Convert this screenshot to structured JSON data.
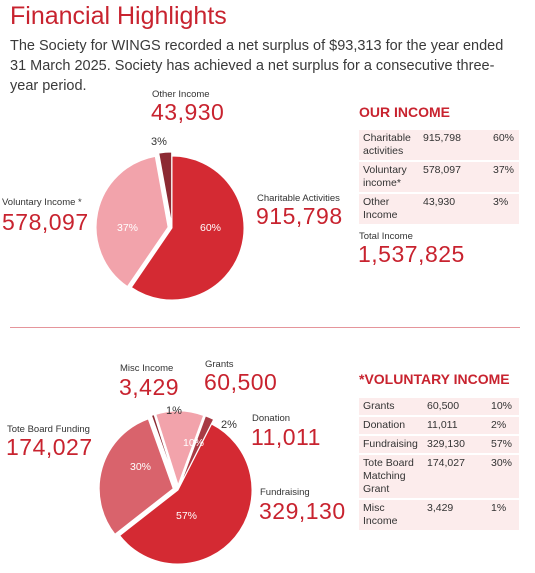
{
  "header": {
    "title": "Financial Highlights",
    "intro": "The Society for WINGS recorded a net surplus of $93,313 for the year ended 31 March 2025. Society has achieved a net surplus for a consecutive three-year period."
  },
  "income": {
    "heading": "OUR INCOME",
    "labels": {
      "other": "Other Income",
      "voluntary": "Voluntary Income *",
      "charitable": "Charitable Activities"
    },
    "numbers": {
      "other": "43,930",
      "voluntary": "578,097",
      "charitable": "915,798"
    },
    "pcts": {
      "other": "3%",
      "voluntary": "37%",
      "charitable": "60%"
    },
    "table": [
      [
        "Charitable activities",
        "915,798",
        "60%"
      ],
      [
        "Voluntary income*",
        "578,097",
        "37%"
      ],
      [
        "Other Income",
        "43,930",
        "3%"
      ]
    ],
    "total_label": "Total Income",
    "total_value": "1,537,825"
  },
  "voluntary": {
    "heading": "*VOLUNTARY INCOME",
    "labels": {
      "misc": "Misc Income",
      "grants": "Grants",
      "donation": "Donation",
      "tote": "Tote Board Funding",
      "fundraising": "Fundraising"
    },
    "numbers": {
      "misc": "3,429",
      "grants": "60,500",
      "donation": "11,011",
      "tote": "174,027",
      "fundraising": "329,130"
    },
    "pcts": {
      "misc": "1%",
      "grants": "10%",
      "donation": "2%",
      "tote": "30%",
      "fundraising": "57%"
    },
    "table": [
      [
        "Grants",
        "60,500",
        "10%"
      ],
      [
        "Donation",
        "11,011",
        "2%"
      ],
      [
        "Fundraising",
        "329,130",
        "57%"
      ],
      [
        "Tote Board Matching Grant",
        "174,027",
        "30%"
      ],
      [
        "Misc Income",
        "3,429",
        "1%"
      ]
    ]
  },
  "colors": {
    "accent": "#c8232f",
    "table_bg": "#fcecec",
    "charitable": "#d42a33",
    "voluntary_income": "#f2a3ab",
    "other_income": "#8c2a33",
    "fundraising": "#d42a33",
    "tote": "#d9636c",
    "misc": "#8c2a33",
    "grants": "#f2a3ab",
    "donation": "#a83a44"
  },
  "chart_data": [
    {
      "type": "pie",
      "title": "OUR INCOME",
      "slices": [
        {
          "label": "Charitable Activities",
          "value": 915798,
          "percent": 60
        },
        {
          "label": "Voluntary Income *",
          "value": 578097,
          "percent": 37
        },
        {
          "label": "Other Income",
          "value": 43930,
          "percent": 3
        }
      ]
    },
    {
      "type": "pie",
      "title": "*VOLUNTARY INCOME",
      "slices": [
        {
          "label": "Fundraising",
          "value": 329130,
          "percent": 57
        },
        {
          "label": "Tote Board Funding",
          "value": 174027,
          "percent": 30
        },
        {
          "label": "Misc Income",
          "value": 3429,
          "percent": 1
        },
        {
          "label": "Grants",
          "value": 60500,
          "percent": 10
        },
        {
          "label": "Donation",
          "value": 11011,
          "percent": 2
        }
      ]
    }
  ]
}
